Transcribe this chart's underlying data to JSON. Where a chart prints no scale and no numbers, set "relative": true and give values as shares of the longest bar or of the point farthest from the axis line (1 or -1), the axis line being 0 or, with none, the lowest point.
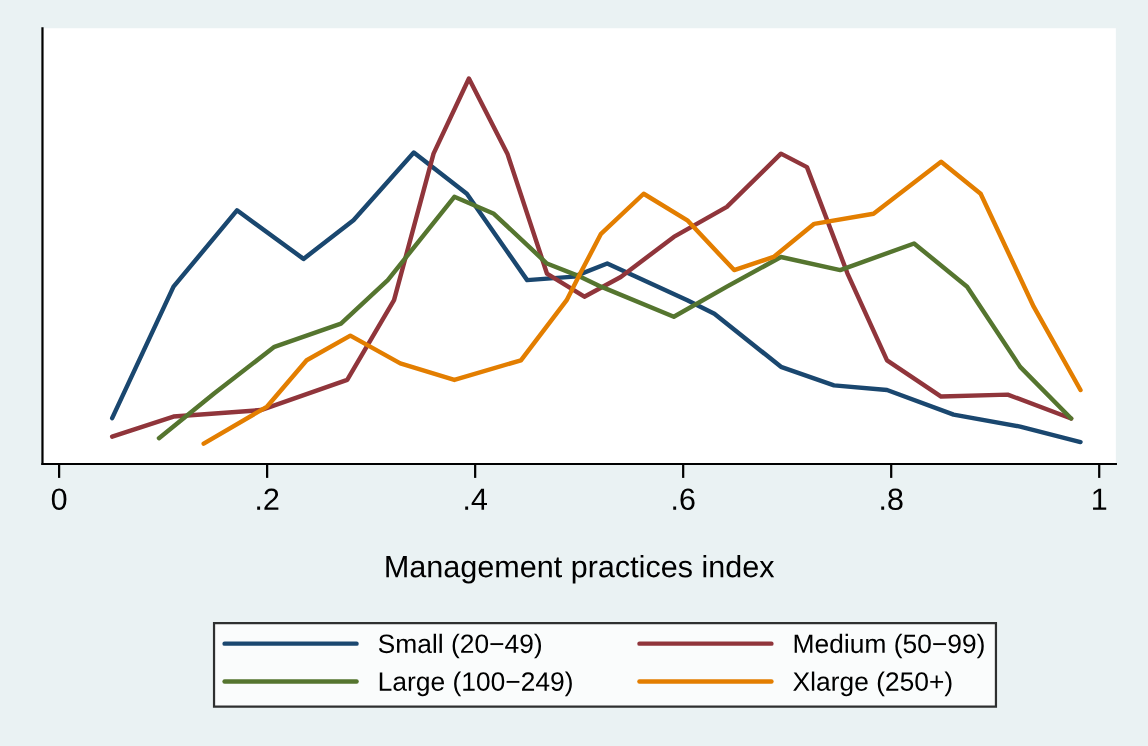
{
  "chart_data": {
    "type": "line",
    "xlabel": "Management practices index",
    "relative": true,
    "xlim": [
      -0.016,
      1.016
    ],
    "xticks": [
      0,
      {
        "value": 0.2,
        "label": ".2"
      },
      {
        "value": 0.4,
        "label": ".4"
      },
      {
        "value": 0.6,
        "label": ".6"
      },
      {
        "value": 0.8,
        "label": ".8"
      },
      1
    ],
    "legend": "bottom",
    "tick_labels": "x",
    "line_style": "solid",
    "marker": "none",
    "series": [
      {
        "name": "Small (20−49)",
        "color": "#1a476f",
        "x": [
          0.051,
          0.11,
          0.171,
          0.235,
          0.283,
          0.341,
          0.392,
          0.45,
          0.495,
          0.527,
          0.604,
          0.63,
          0.694,
          0.745,
          0.796,
          0.86,
          0.924,
          0.982
        ],
        "values": [
          0.119,
          0.46,
          0.658,
          0.532,
          0.632,
          0.808,
          0.701,
          0.477,
          0.486,
          0.52,
          0.425,
          0.39,
          0.252,
          0.204,
          0.192,
          0.128,
          0.097,
          0.057
        ]
      },
      {
        "name": "Medium (50−99)",
        "color": "#90353b",
        "x": [
          0.051,
          0.11,
          0.194,
          0.277,
          0.322,
          0.36,
          0.394,
          0.431,
          0.469,
          0.505,
          0.54,
          0.591,
          0.642,
          0.694,
          0.719,
          0.758,
          0.796,
          0.848,
          0.912,
          0.973
        ],
        "values": [
          0.071,
          0.123,
          0.14,
          0.218,
          0.425,
          0.805,
          1.0,
          0.805,
          0.494,
          0.434,
          0.485,
          0.589,
          0.667,
          0.805,
          0.77,
          0.494,
          0.269,
          0.175,
          0.18,
          0.118
        ]
      },
      {
        "name": "Large (100−249)",
        "color": "#55752f",
        "x": [
          0.096,
          0.149,
          0.207,
          0.271,
          0.316,
          0.38,
          0.418,
          0.469,
          0.501,
          0.521,
          0.591,
          0.642,
          0.694,
          0.751,
          0.822,
          0.873,
          0.924,
          0.973
        ],
        "values": [
          0.067,
          0.183,
          0.304,
          0.364,
          0.477,
          0.693,
          0.649,
          0.52,
          0.486,
          0.46,
          0.382,
          0.46,
          0.537,
          0.503,
          0.572,
          0.46,
          0.252,
          0.118
        ]
      },
      {
        "name": "Xlarge (250+)",
        "color": "#e37e00",
        "x": [
          0.139,
          0.2,
          0.238,
          0.28,
          0.328,
          0.38,
          0.444,
          0.488,
          0.501,
          0.521,
          0.562,
          0.604,
          0.649,
          0.687,
          0.726,
          0.783,
          0.848,
          0.886,
          0.937,
          0.982
        ],
        "values": [
          0.053,
          0.149,
          0.269,
          0.333,
          0.261,
          0.218,
          0.269,
          0.425,
          0.494,
          0.597,
          0.701,
          0.632,
          0.503,
          0.537,
          0.623,
          0.649,
          0.784,
          0.701,
          0.408,
          0.192
        ]
      }
    ]
  }
}
